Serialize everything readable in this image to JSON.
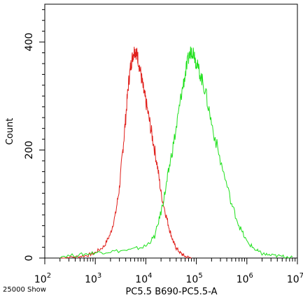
{
  "chart_data": {
    "type": "line",
    "title": "",
    "xlabel": "PC5.5 B690-PC5.5-A",
    "ylabel": "Count",
    "x_scale": "log",
    "xlim": [
      100,
      10000000
    ],
    "ylim": [
      0,
      470
    ],
    "x_ticks": [
      {
        "base": "10",
        "exp": "2"
      },
      {
        "base": "10",
        "exp": "3"
      },
      {
        "base": "10",
        "exp": "4"
      },
      {
        "base": "10",
        "exp": "5"
      },
      {
        "base": "10",
        "exp": "6"
      },
      {
        "base": "10",
        "exp": "7"
      }
    ],
    "y_ticks": [
      0,
      200,
      400
    ],
    "grid": false,
    "series": [
      {
        "color": "#e0201c",
        "x": [
          200,
          400,
          700,
          1000,
          1500,
          2000,
          2500,
          3000,
          3500,
          4000,
          4500,
          5000,
          5500,
          6000,
          6500,
          7000,
          8000,
          9000,
          10000,
          12000,
          14000,
          17000,
          20000,
          25000,
          30000,
          35000,
          40000,
          50000,
          60000,
          80000
        ],
        "y": [
          0,
          2,
          5,
          10,
          22,
          45,
          80,
          130,
          200,
          260,
          320,
          355,
          375,
          385,
          380,
          370,
          340,
          310,
          290,
          250,
          215,
          170,
          120,
          80,
          50,
          30,
          18,
          8,
          3,
          0
        ]
      },
      {
        "color": "#1fe01c",
        "x": [
          200,
          500,
          1000,
          2000,
          5000,
          10000,
          15000,
          20000,
          25000,
          30000,
          40000,
          50000,
          60000,
          70000,
          80000,
          90000,
          100000,
          120000,
          150000,
          200000,
          300000,
          500000,
          700000,
          1000000,
          1500000,
          2000000,
          3000000,
          5000000,
          8000000
        ],
        "y": [
          3,
          6,
          10,
          12,
          15,
          22,
          40,
          85,
          130,
          175,
          240,
          300,
          340,
          370,
          385,
          380,
          360,
          340,
          310,
          250,
          180,
          100,
          60,
          30,
          15,
          8,
          5,
          3,
          2
        ]
      }
    ]
  },
  "footer_left": "25000 Show"
}
